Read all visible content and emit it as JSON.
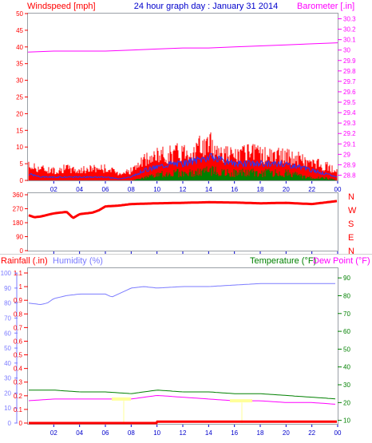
{
  "title": "24 hour graph day : January 31 2014",
  "colors": {
    "wind": "#ff0000",
    "wind_avg": "#1e3cff",
    "gust_low": "#008000",
    "baro": "#ff00ff",
    "rain": "#ff0000",
    "humidity": "#7b7bff",
    "temp": "#008000",
    "dew": "#ff00ff",
    "axis_blue": "#0000cc",
    "frame": "#9aa0a6"
  },
  "hour_ticks": [
    "02",
    "04",
    "06",
    "08",
    "10",
    "12",
    "14",
    "16",
    "18",
    "20",
    "22",
    "00"
  ],
  "chart_data": [
    {
      "type": "line",
      "name": "wind_baro",
      "left_label": "Windspeed [mph]",
      "right_label": "Barometer [.in]",
      "left_ticks": [
        "0",
        "5",
        "10",
        "15",
        "20",
        "25",
        "30",
        "35",
        "40",
        "45",
        "50"
      ],
      "right_ticks": [
        "28.8",
        "28.9",
        "29",
        "29.1",
        "29.2",
        "29.3",
        "29.4",
        "29.5",
        "29.6",
        "29.7",
        "29.8",
        "29.9",
        "30",
        "30.1",
        "30.2",
        "30.3"
      ],
      "ylim_left": [
        0,
        50
      ],
      "ylim_right": [
        28.75,
        30.35
      ],
      "barometer": {
        "x": [
          0,
          2,
          4,
          6,
          8,
          10,
          12,
          14,
          16,
          18,
          20,
          22,
          24
        ],
        "y": [
          29.98,
          29.99,
          29.99,
          29.99,
          30.0,
          30.01,
          30.02,
          30.02,
          30.03,
          30.04,
          30.05,
          30.06,
          30.07
        ]
      },
      "wind_envelope": {
        "x": [
          0,
          1,
          2,
          3,
          4,
          5,
          6,
          7,
          8,
          9,
          10,
          11,
          12,
          13,
          14,
          15,
          16,
          17,
          18,
          19,
          20,
          21,
          22,
          23,
          24
        ],
        "max": [
          6,
          5,
          4,
          5,
          4,
          5,
          5,
          3,
          4,
          8,
          10,
          11,
          12,
          13,
          15,
          12,
          10,
          11,
          11,
          10,
          10,
          9,
          7,
          6,
          4
        ],
        "avg": [
          2,
          1,
          1,
          1,
          1,
          1,
          1,
          0.5,
          1,
          3,
          4,
          5,
          5,
          6,
          7,
          6,
          5,
          5,
          5,
          5,
          5,
          4,
          3,
          2,
          1
        ],
        "low": [
          0,
          0,
          0,
          0,
          0,
          0,
          0,
          0,
          0,
          1,
          2,
          3,
          3,
          3,
          4,
          3,
          3,
          3,
          3,
          3,
          3,
          2,
          1,
          1,
          0
        ]
      }
    },
    {
      "type": "line",
      "name": "wind_direction",
      "left_ticks": [
        "0",
        "90",
        "180",
        "270",
        "360"
      ],
      "right_labels": [
        "N",
        "W",
        "S",
        "E",
        "N"
      ],
      "ylim": [
        0,
        360
      ],
      "direction": {
        "x": [
          0,
          0.5,
          1,
          2,
          3,
          3.5,
          4,
          5,
          5.5,
          6,
          7,
          8,
          10,
          12,
          14,
          16,
          18,
          20,
          22,
          23,
          24
        ],
        "y": [
          230,
          215,
          220,
          240,
          250,
          210,
          235,
          245,
          260,
          285,
          290,
          300,
          305,
          308,
          312,
          310,
          305,
          308,
          300,
          310,
          320
        ]
      }
    },
    {
      "type": "line",
      "name": "rain_humidity_temp",
      "rain_label": "Rainfall (.in)",
      "humidity_label": "Humidity (%)",
      "temp_label": "Temperature (°F)",
      "dew_label": "Dew Point (°F)",
      "rain_ticks": [
        "0",
        "0.1",
        "0.2",
        "0.3",
        "0.4",
        "0.5",
        "0.6",
        "0.7",
        "0.8",
        "0.9",
        "1",
        "1.1"
      ],
      "humidity_ticks": [
        "0",
        "10",
        "20",
        "30",
        "40",
        "50",
        "60",
        "70",
        "80",
        "90",
        "100"
      ],
      "temp_ticks": [
        "10",
        "20",
        "30",
        "40",
        "50",
        "60",
        "70",
        "80",
        "90"
      ],
      "temp_ylim": [
        8.5,
        95
      ],
      "humidity": {
        "x": [
          0,
          1,
          1.5,
          2,
          3,
          4,
          5,
          6,
          6.5,
          7,
          8,
          9,
          10,
          12,
          14,
          16,
          18,
          20,
          22,
          24
        ],
        "y": [
          80,
          79,
          80,
          83,
          85,
          86,
          86,
          86,
          84,
          86,
          90,
          91,
          90,
          91,
          91,
          92,
          93,
          93,
          93,
          93
        ]
      },
      "temperature": {
        "x": [
          0,
          2,
          4,
          6,
          8,
          10,
          12,
          14,
          16,
          18,
          20,
          22,
          24
        ],
        "y": [
          27,
          27,
          26,
          26,
          25,
          27,
          26,
          26,
          25,
          25,
          24,
          23,
          22
        ]
      },
      "dew_point": {
        "x": [
          0,
          2,
          4,
          6,
          8,
          10,
          12,
          14,
          16,
          18,
          20,
          22,
          24
        ],
        "y": [
          21,
          22,
          22,
          22,
          22,
          24,
          23,
          22,
          21,
          21,
          20,
          20,
          19
        ]
      },
      "rainfall": {
        "x": [
          0,
          10,
          10.01,
          24
        ],
        "y": [
          0,
          0,
          0.01,
          0.01
        ]
      }
    }
  ]
}
